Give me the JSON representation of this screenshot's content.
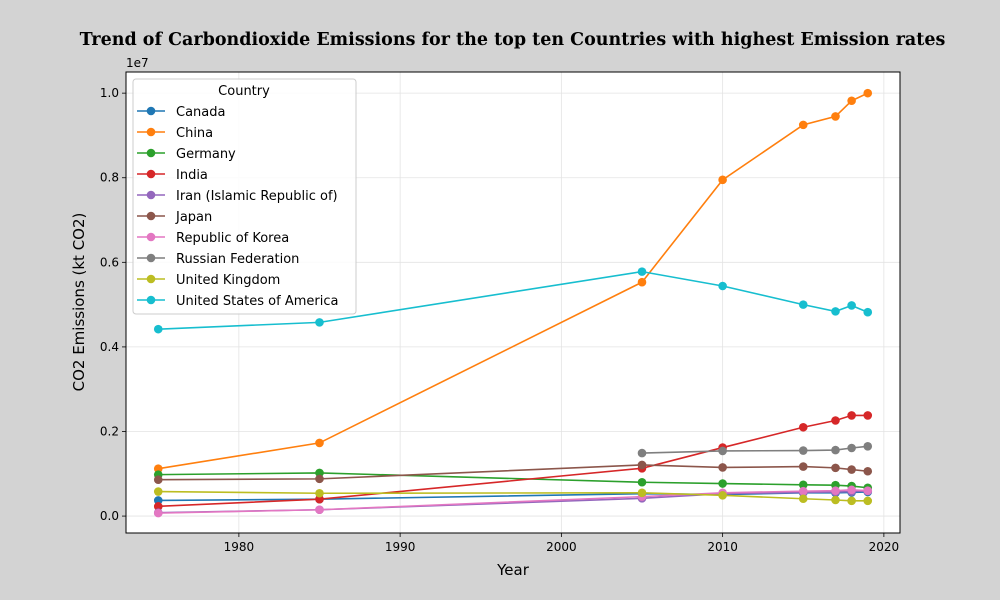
{
  "chart_data": {
    "type": "line",
    "title": "Trend of Carbondioxide Emissions for the top ten Countries with highest Emission rates",
    "xlabel": "Year",
    "ylabel": "CO2 Emissions (kt CO2)",
    "y_offset_label": "1e7",
    "xlim": [
      1973,
      2021
    ],
    "ylim": [
      -0.04,
      1.05
    ],
    "y_unit_scale": "1e7",
    "x_ticks": [
      1980,
      1990,
      2000,
      2010,
      2020
    ],
    "y_ticks": [
      0.0,
      0.2,
      0.4,
      0.6,
      0.8,
      1.0
    ],
    "grid": true,
    "legend_title": "Country",
    "legend_position": "top-left",
    "series": [
      {
        "name": "Canada",
        "color": "#1f77b4",
        "points": [
          [
            1975,
            0.037
          ],
          [
            1985,
            0.04
          ],
          [
            2005,
            0.053
          ],
          [
            2010,
            0.051
          ],
          [
            2015,
            0.055
          ],
          [
            2017,
            0.055
          ],
          [
            2018,
            0.056
          ],
          [
            2019,
            0.057
          ]
        ]
      },
      {
        "name": "China",
        "color": "#ff7f0e",
        "points": [
          [
            1975,
            0.112
          ],
          [
            1985,
            0.173
          ],
          [
            2005,
            0.553
          ],
          [
            2010,
            0.795
          ],
          [
            2015,
            0.925
          ],
          [
            2017,
            0.945
          ],
          [
            2018,
            0.982
          ],
          [
            2019,
            1.0
          ]
        ]
      },
      {
        "name": "Germany",
        "color": "#2ca02c",
        "points": [
          [
            1975,
            0.098
          ],
          [
            1985,
            0.102
          ],
          [
            2005,
            0.08
          ],
          [
            2010,
            0.077
          ],
          [
            2015,
            0.074
          ],
          [
            2017,
            0.073
          ],
          [
            2018,
            0.071
          ],
          [
            2019,
            0.067
          ]
        ]
      },
      {
        "name": "India",
        "color": "#d62728",
        "points": [
          [
            1975,
            0.023
          ],
          [
            1985,
            0.04
          ],
          [
            2005,
            0.113
          ],
          [
            2010,
            0.162
          ],
          [
            2015,
            0.21
          ],
          [
            2017,
            0.226
          ],
          [
            2018,
            0.238
          ],
          [
            2019,
            0.238
          ]
        ]
      },
      {
        "name": "Iran (Islamic Republic of)",
        "color": "#9467bd",
        "points": [
          [
            1975,
            0.008
          ],
          [
            1985,
            0.015
          ],
          [
            2005,
            0.042
          ],
          [
            2010,
            0.053
          ],
          [
            2015,
            0.056
          ],
          [
            2017,
            0.057
          ],
          [
            2018,
            0.058
          ],
          [
            2019,
            0.059
          ]
        ]
      },
      {
        "name": "Japan",
        "color": "#8c564b",
        "points": [
          [
            1975,
            0.086
          ],
          [
            1985,
            0.088
          ],
          [
            2005,
            0.121
          ],
          [
            2010,
            0.115
          ],
          [
            2015,
            0.117
          ],
          [
            2017,
            0.114
          ],
          [
            2018,
            0.11
          ],
          [
            2019,
            0.106
          ]
        ]
      },
      {
        "name": "Republic of Korea",
        "color": "#e377c2",
        "points": [
          [
            1975,
            0.007
          ],
          [
            1985,
            0.015
          ],
          [
            2005,
            0.046
          ],
          [
            2010,
            0.055
          ],
          [
            2015,
            0.059
          ],
          [
            2017,
            0.06
          ],
          [
            2018,
            0.062
          ],
          [
            2019,
            0.06
          ]
        ]
      },
      {
        "name": "Russian Federation",
        "color": "#7f7f7f",
        "points": [
          [
            2005,
            0.149
          ],
          [
            2010,
            0.154
          ],
          [
            2015,
            0.155
          ],
          [
            2017,
            0.156
          ],
          [
            2018,
            0.161
          ],
          [
            2019,
            0.165
          ]
        ]
      },
      {
        "name": "United Kingdom",
        "color": "#bcbd22",
        "points": [
          [
            1975,
            0.058
          ],
          [
            1985,
            0.054
          ],
          [
            2005,
            0.055
          ],
          [
            2010,
            0.049
          ],
          [
            2015,
            0.041
          ],
          [
            2017,
            0.038
          ],
          [
            2018,
            0.036
          ],
          [
            2019,
            0.036
          ]
        ]
      },
      {
        "name": "United States of America",
        "color": "#17becf",
        "points": [
          [
            1975,
            0.442
          ],
          [
            1985,
            0.458
          ],
          [
            2005,
            0.578
          ],
          [
            2010,
            0.544
          ],
          [
            2015,
            0.5
          ],
          [
            2017,
            0.484
          ],
          [
            2018,
            0.498
          ],
          [
            2019,
            0.482
          ]
        ]
      }
    ]
  }
}
